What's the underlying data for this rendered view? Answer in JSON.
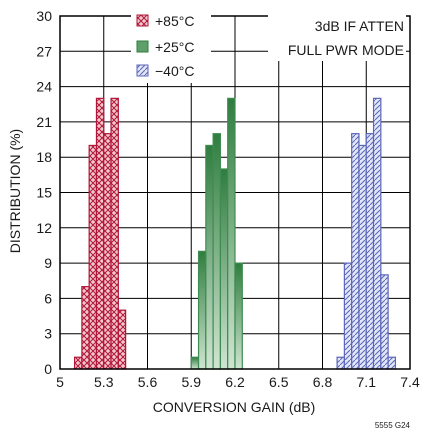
{
  "figure_id": "5555 G24",
  "chart_data": {
    "type": "bar",
    "subtype": "histogram",
    "xlabel": "CONVERSION GAIN (dB)",
    "ylabel": "DISTRIBUTION (%)",
    "xlim": [
      5,
      7.4
    ],
    "ylim": [
      0,
      30
    ],
    "x_ticks": [
      "5",
      "5.3",
      "5.6",
      "5.9",
      "6.2",
      "6.5",
      "6.8",
      "7.1",
      "7.4"
    ],
    "y_ticks": [
      "0",
      "3",
      "6",
      "9",
      "12",
      "15",
      "18",
      "21",
      "24",
      "27",
      "30"
    ],
    "grid": true,
    "bin_width": 0.05,
    "legend_position": "top-center",
    "annotations": [
      "3dB IF ATTEN",
      "FULL PWR MODE"
    ],
    "series": [
      {
        "name": "+85°C",
        "color": "#b0163a",
        "fill_pattern": "crosshatch",
        "bins": [
          {
            "x": 5.125,
            "y": 1
          },
          {
            "x": 5.175,
            "y": 7
          },
          {
            "x": 5.225,
            "y": 19
          },
          {
            "x": 5.275,
            "y": 23
          },
          {
            "x": 5.325,
            "y": 20
          },
          {
            "x": 5.375,
            "y": 23
          },
          {
            "x": 5.425,
            "y": 5
          }
        ]
      },
      {
        "name": "+25°C",
        "color": "#3e8c4f",
        "fill_pattern": "solid-gradient",
        "bins": [
          {
            "x": 5.925,
            "y": 1
          },
          {
            "x": 5.975,
            "y": 10
          },
          {
            "x": 6.025,
            "y": 19
          },
          {
            "x": 6.075,
            "y": 20
          },
          {
            "x": 6.125,
            "y": 17
          },
          {
            "x": 6.175,
            "y": 23
          },
          {
            "x": 6.225,
            "y": 9
          }
        ]
      },
      {
        "name": "−40°C",
        "color": "#5a66b8",
        "fill_pattern": "diagonal",
        "bins": [
          {
            "x": 6.925,
            "y": 1
          },
          {
            "x": 6.975,
            "y": 9
          },
          {
            "x": 7.025,
            "y": 20
          },
          {
            "x": 7.075,
            "y": 19
          },
          {
            "x": 7.125,
            "y": 20
          },
          {
            "x": 7.175,
            "y": 23
          },
          {
            "x": 7.225,
            "y": 8
          },
          {
            "x": 7.275,
            "y": 1
          }
        ]
      }
    ]
  }
}
